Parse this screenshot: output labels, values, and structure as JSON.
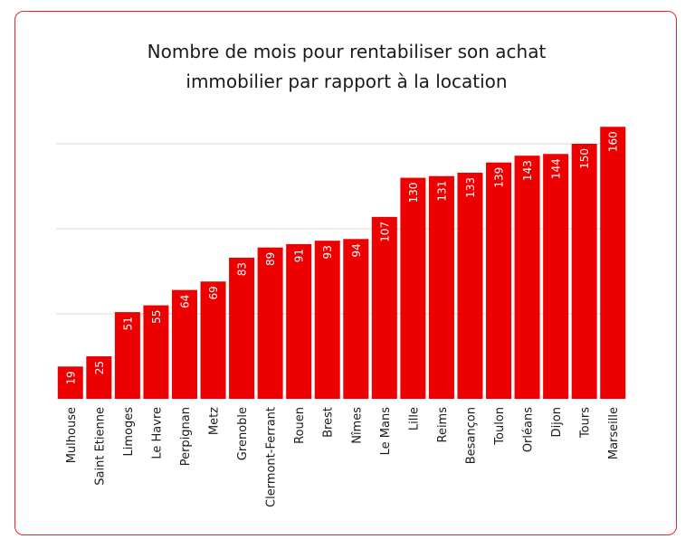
{
  "colors": {
    "bar": "#ef0000",
    "grid": "#d9d9d9",
    "label": "#ffffff",
    "text": "#1a1a1a",
    "border": "#e2262f"
  },
  "chart_data": {
    "type": "bar",
    "title_lines": [
      "Nombre de mois pour rentabiliser son achat",
      "immobilier par rapport à la location"
    ],
    "categories": [
      "Mulhouse",
      "Saint Etienne",
      "Limoges",
      "Le Havre",
      "Perpignan",
      "Metz",
      "Grenoble",
      "Clermont-Ferrant",
      "Rouen",
      "Brest",
      "Nîmes",
      "Le Mans",
      "Lille",
      "Reims",
      "Besançon",
      "Toulon",
      "Orléans",
      "Dijon",
      "Tours",
      "Marseille"
    ],
    "values": [
      19,
      25,
      51,
      55,
      64,
      69,
      83,
      89,
      91,
      93,
      94,
      107,
      130,
      131,
      133,
      139,
      143,
      144,
      150,
      160
    ],
    "ylim": [
      0,
      150
    ],
    "gridlines": [
      50,
      100,
      150
    ],
    "data_labels": true
  }
}
